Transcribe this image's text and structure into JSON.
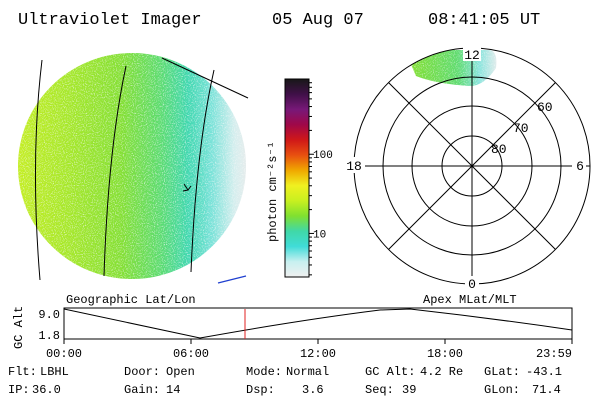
{
  "header": {
    "title": "Ultraviolet Imager",
    "date": "05 Aug 07",
    "time": "08:41:05 UT"
  },
  "colors": {
    "bright_green": "#84e034",
    "light_green": "#c8f020",
    "cyan": "#34d4c4",
    "pale_cyan": "#a8ecec",
    "gray_white": "#e8e8e8",
    "orbit_marker": "#e02020",
    "terminator_blue": "#2040d0"
  },
  "colorbar": {
    "unit": "photon cm⁻²s⁻¹",
    "ticks": [
      {
        "label": "10",
        "value": 10
      },
      {
        "label": "100",
        "value": 100
      }
    ],
    "gradient_stops": [
      "#f0f0f0",
      "#c8f0f0",
      "#40dcd8",
      "#40d8a8",
      "#80e030",
      "#c8f020",
      "#f0f020",
      "#f0a800",
      "#e85010",
      "#d01818",
      "#a00848",
      "#781878",
      "#401048",
      "#181818"
    ]
  },
  "polar_plot": {
    "mlt_labels": [
      {
        "label": "12",
        "position": "top"
      },
      {
        "label": "18",
        "position": "left"
      },
      {
        "label": "6",
        "position": "right"
      },
      {
        "label": "0",
        "position": "bottom"
      }
    ],
    "lat_labels": [
      "60",
      "70",
      "80"
    ]
  },
  "orbit": {
    "left_label": "Geographic Lat/Lon",
    "right_label": "Apex MLat/MLT",
    "axis_label": "GC Alt",
    "y_ticks": [
      "9.0",
      "1.8"
    ],
    "time_ticks": [
      "00:00",
      "06:00",
      "12:00",
      "18:00",
      "23:59"
    ],
    "current_time": "08:41"
  },
  "status": {
    "row1": [
      {
        "key": "Flt:",
        "value": "LBHL"
      },
      {
        "key": "Door:",
        "value": "Open"
      },
      {
        "key": "Mode:",
        "value": "Normal"
      },
      {
        "key": "GC Alt:",
        "value": "4.2 Re"
      },
      {
        "key": "GLat:",
        "value": "-43.1"
      }
    ],
    "row2": [
      {
        "key": "IP:",
        "value": "36.0"
      },
      {
        "key": "Gain:",
        "value": "14"
      },
      {
        "key": "Dsp:",
        "value": "3.6"
      },
      {
        "key": "Seq:",
        "value": "39"
      },
      {
        "key": "GLon:",
        "value": "71.4"
      }
    ]
  }
}
